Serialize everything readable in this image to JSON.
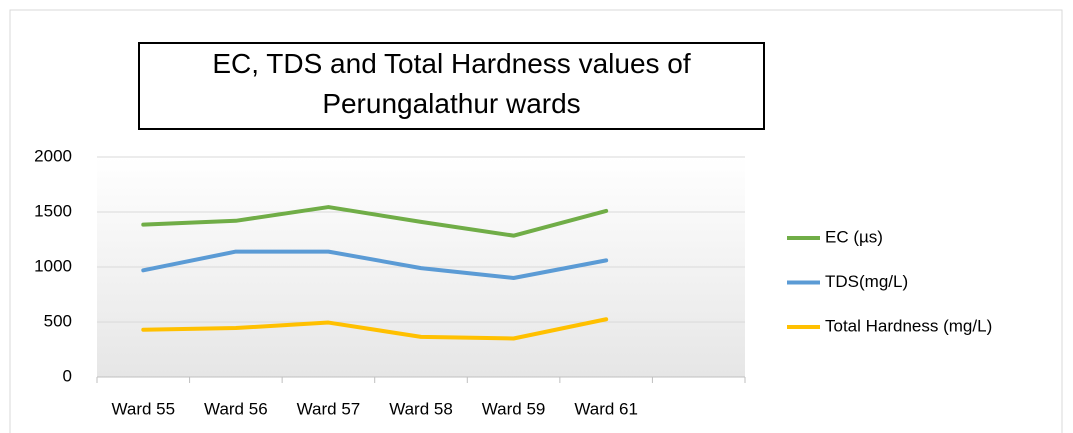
{
  "chart_data": {
    "type": "line",
    "title": "EC, TDS and Total Hardness values of Perungalathur wards",
    "categories": [
      "Ward 55",
      "Ward 56",
      "Ward 57",
      "Ward 58",
      "Ward 59",
      "Ward 61",
      null
    ],
    "series": [
      {
        "name": "EC (µs)",
        "color": "#70ad47",
        "values": [
          1385,
          1420,
          1545,
          1410,
          1285,
          1510,
          null
        ]
      },
      {
        "name": "TDS(mg/L)",
        "color": "#5b9bd5",
        "values": [
          970,
          1140,
          1140,
          990,
          900,
          1060,
          null
        ]
      },
      {
        "name": "Total Hardness (mg/L)",
        "color": "#ffc000",
        "values": [
          430,
          445,
          495,
          365,
          350,
          525,
          null
        ]
      }
    ],
    "ylim": [
      0,
      2000
    ],
    "yticks": [
      0,
      500,
      1000,
      1500,
      2000
    ],
    "grid": true,
    "legend": "right"
  }
}
